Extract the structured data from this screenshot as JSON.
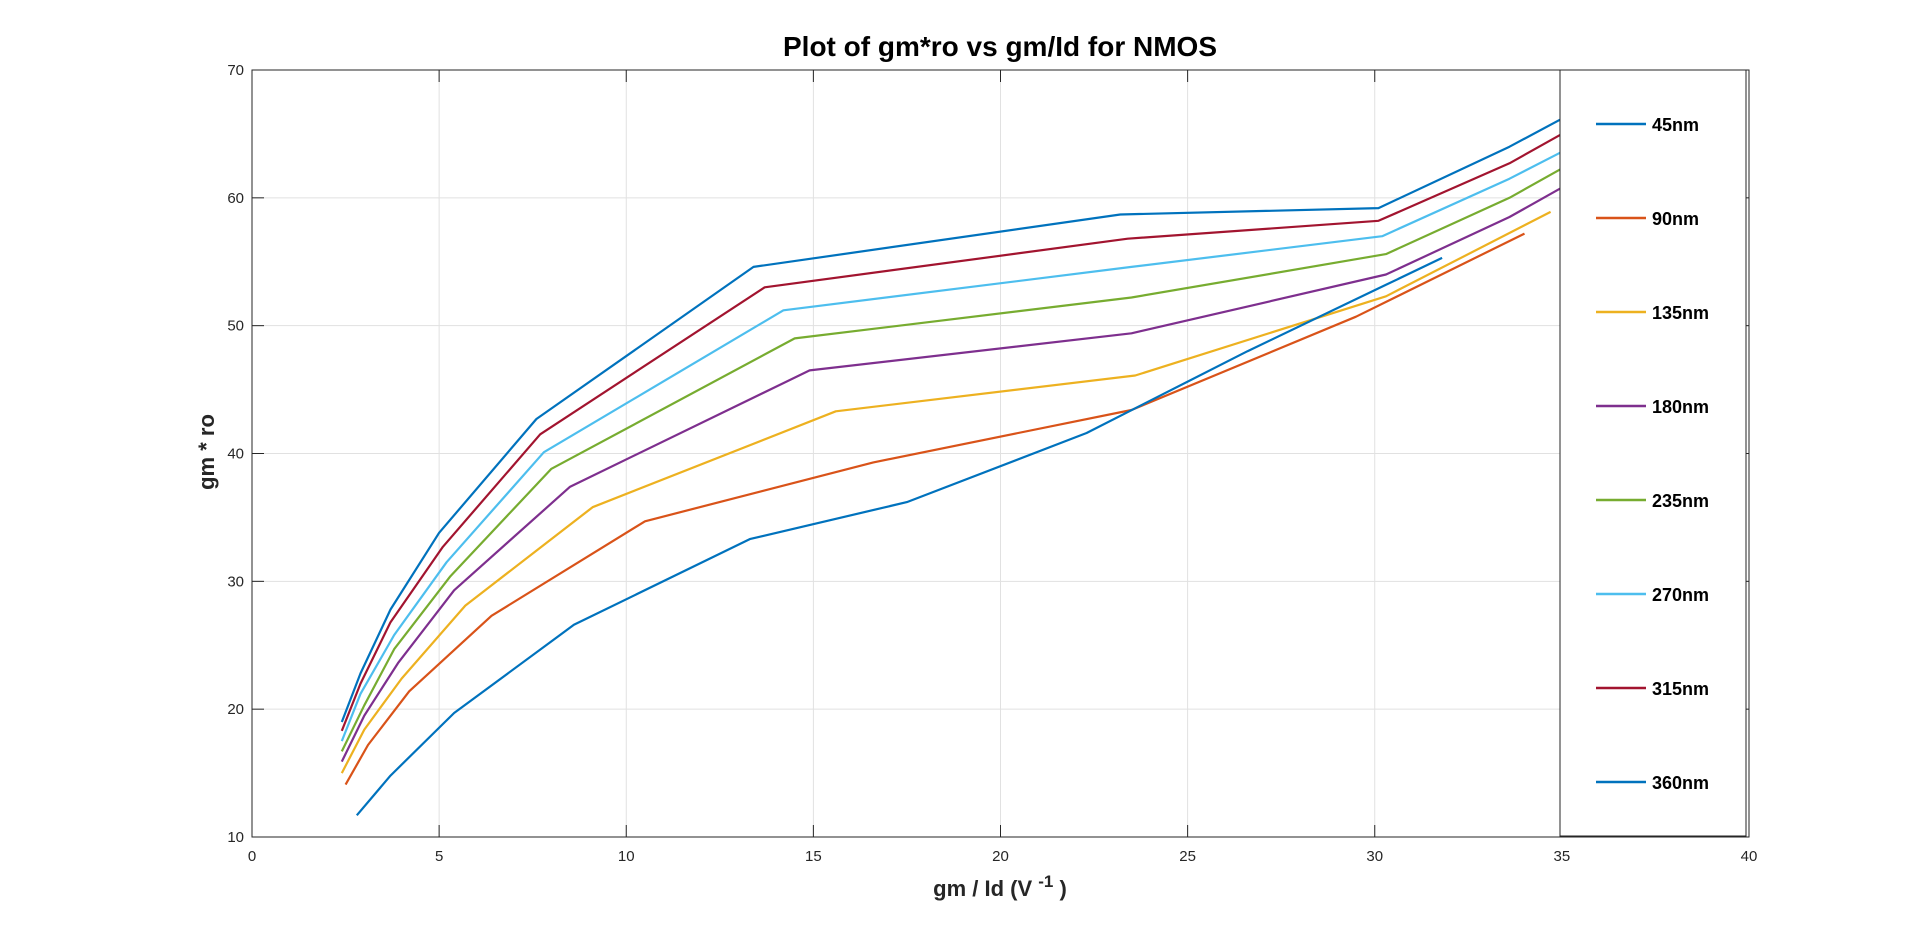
{
  "chart_data": {
    "type": "line",
    "title": "Plot of gm*ro vs gm/Id for NMOS",
    "xlabel": "gm / Id (V",
    "xlabel_sup": "-1",
    "xlabel_close": ")",
    "ylabel": "gm * ro",
    "xlim": [
      0,
      40
    ],
    "ylim": [
      10,
      70
    ],
    "xticks": [
      0,
      5,
      10,
      15,
      20,
      25,
      30,
      35,
      40
    ],
    "yticks": [
      10,
      20,
      30,
      40,
      50,
      60,
      70
    ],
    "grid": true,
    "legend_position": "right",
    "series": [
      {
        "name": "45nm",
        "color": "#0072BD",
        "x": [
          2.4,
          2.9,
          3.7,
          5.0,
          7.6,
          13.4,
          23.2,
          30.1,
          33.6,
          35.2
        ],
        "y": [
          19.0,
          22.8,
          27.8,
          33.8,
          42.7,
          54.6,
          58.7,
          59.2,
          64.0,
          66.5
        ]
      },
      {
        "name": "90nm",
        "color": "#D95319",
        "x": [
          2.5,
          3.1,
          4.2,
          6.4,
          10.5,
          16.6,
          23.5,
          29.5,
          34.0
        ],
        "y": [
          14.1,
          17.2,
          21.4,
          27.3,
          34.7,
          39.3,
          43.4,
          50.7,
          57.2
        ]
      },
      {
        "name": "135nm",
        "color": "#EDB120",
        "x": [
          2.4,
          3.0,
          4.0,
          5.7,
          9.1,
          15.6,
          23.6,
          30.3,
          34.7
        ],
        "y": [
          15.0,
          18.4,
          22.4,
          28.1,
          35.8,
          43.3,
          46.1,
          52.3,
          58.9
        ]
      },
      {
        "name": "180nm",
        "color": "#7E2F8E",
        "x": [
          2.4,
          3.0,
          3.9,
          5.4,
          8.5,
          14.9,
          23.5,
          30.3,
          33.6,
          35.0
        ],
        "y": [
          15.9,
          19.5,
          23.6,
          29.3,
          37.4,
          46.5,
          49.4,
          54.0,
          58.5,
          60.8
        ]
      },
      {
        "name": "235nm",
        "color": "#77AC30",
        "x": [
          2.4,
          3.0,
          3.8,
          5.3,
          8.0,
          14.5,
          23.5,
          30.3,
          33.6,
          35.0
        ],
        "y": [
          16.7,
          20.3,
          24.7,
          30.4,
          38.8,
          49.0,
          52.2,
          55.6,
          60.0,
          62.3
        ]
      },
      {
        "name": "270nm",
        "color": "#4DBEEE",
        "x": [
          2.4,
          2.9,
          3.8,
          5.2,
          7.8,
          14.2,
          23.5,
          30.2,
          33.6,
          35.0
        ],
        "y": [
          17.5,
          21.2,
          25.8,
          31.5,
          40.1,
          51.2,
          54.6,
          57.0,
          61.5,
          63.6
        ]
      },
      {
        "name": "315nm",
        "color": "#A2142F",
        "x": [
          2.4,
          2.9,
          3.7,
          5.1,
          7.7,
          13.7,
          23.4,
          30.1,
          33.6,
          35.0
        ],
        "y": [
          18.3,
          22.0,
          26.8,
          32.7,
          41.5,
          53.0,
          56.8,
          58.2,
          62.7,
          65.0
        ]
      },
      {
        "name": "360nm",
        "color": "#0072BD",
        "x": [
          2.8,
          3.7,
          5.4,
          8.6,
          13.3,
          17.5,
          22.3,
          26.6,
          30.3,
          31.8
        ],
        "y": [
          11.7,
          14.8,
          19.7,
          26.6,
          33.3,
          36.2,
          41.6,
          48.0,
          53.2,
          55.3
        ]
      }
    ]
  }
}
